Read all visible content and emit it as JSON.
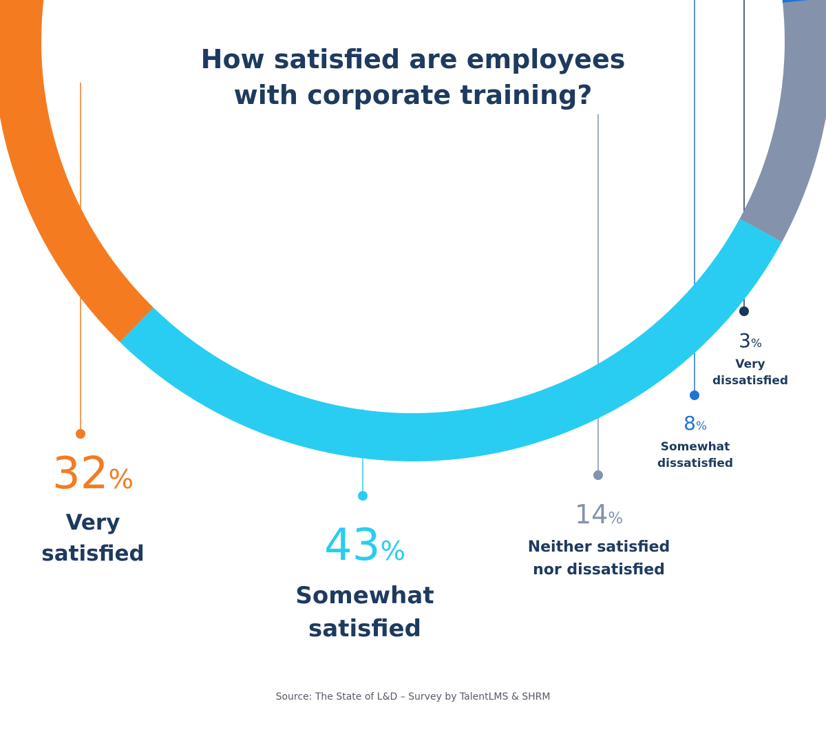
{
  "chart_data": {
    "type": "pie",
    "title_lines": [
      "How satisfied are employees",
      "with corporate training?"
    ],
    "categories": [
      "Very satisfied",
      "Somewhat satisfied",
      "Neither satisfied nor dissatisfied",
      "Somewhat dissatisfied",
      "Very dissatisfied"
    ],
    "category_lines": [
      [
        "Very",
        "satisfied"
      ],
      [
        "Somewhat",
        "satisfied"
      ],
      [
        "Neither satisfied",
        "nor dissatisfied"
      ],
      [
        "Somewhat",
        "dissatisfied"
      ],
      [
        "Very",
        "dissatisfied"
      ]
    ],
    "values": [
      32,
      43,
      14,
      8,
      3
    ],
    "value_labels": [
      "32",
      "43",
      "14",
      "8",
      "3"
    ],
    "unit": "%",
    "colors": [
      "#f47b20",
      "#29cdf2",
      "#8493ab",
      "#1f74d1",
      "#1b355c"
    ],
    "text_colors": [
      "#f47b20",
      "#29cdf2",
      "#8493ab",
      "#1f74d1",
      "#1b355c"
    ]
  },
  "source": "Source: The State of L&D – Survey by TalentLMS & SHRM"
}
